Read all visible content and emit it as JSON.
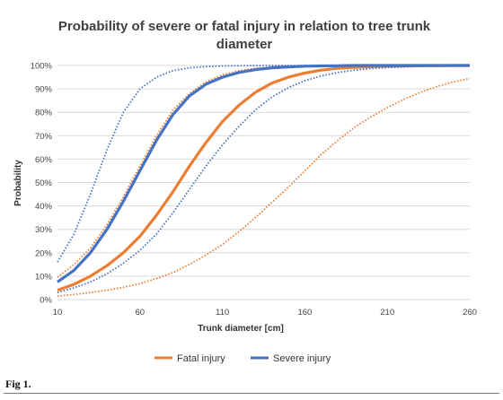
{
  "caption": "Fig 1.",
  "colors": {
    "fatal": "#ed7d31",
    "severe": "#4472c4",
    "grid": "#d9d9d9"
  },
  "chart_data": {
    "type": "line",
    "title_lines": [
      "Probability of severe or fatal injury in relation to tree trunk",
      "diameter"
    ],
    "xlabel": "Trunk diameter [cm]",
    "ylabel": "Probability",
    "xlim": [
      10,
      260
    ],
    "ylim": [
      0,
      100
    ],
    "x_ticks": [
      "10",
      "60",
      "110",
      "160",
      "210",
      "260"
    ],
    "y_ticks": [
      "0%",
      "10%",
      "20%",
      "30%",
      "40%",
      "50%",
      "60%",
      "70%",
      "80%",
      "90%",
      "100%"
    ],
    "grid": "horizontal",
    "legend_position": "bottom",
    "legend": [
      "Fatal injury",
      "Severe injury"
    ],
    "x": [
      10,
      20,
      30,
      40,
      50,
      60,
      70,
      80,
      90,
      100,
      110,
      120,
      130,
      140,
      150,
      160,
      170,
      180,
      190,
      200,
      210,
      220,
      230,
      240,
      250,
      260
    ],
    "series": [
      {
        "name": "Fatal injury",
        "group": "fatal",
        "style": "main",
        "values": [
          4,
          6.5,
          10,
          14.5,
          20,
          27,
          36,
          46,
          57,
          67,
          76,
          83,
          88.5,
          92.5,
          95,
          96.8,
          98,
          98.8,
          99.2,
          99.5,
          99.7,
          99.8,
          99.9,
          99.9,
          100,
          100
        ]
      },
      {
        "name": "Fatal injury",
        "group": "fatal",
        "style": "ci",
        "values": [
          9.5,
          15,
          22,
          32,
          44,
          57,
          70,
          81,
          88,
          93,
          96,
          97.8,
          98.8,
          99.4,
          99.7,
          99.8,
          99.9,
          100,
          100,
          100,
          100,
          100,
          100,
          100,
          100,
          100
        ]
      },
      {
        "name": "Fatal injury",
        "group": "fatal",
        "style": "ci",
        "values": [
          1.5,
          2.2,
          3,
          4,
          5.2,
          6.8,
          9,
          11.5,
          15,
          19,
          23.5,
          29,
          35,
          41.5,
          48,
          55,
          62,
          68,
          73.5,
          78,
          82,
          85.5,
          88.5,
          91,
          93,
          94.5
        ]
      },
      {
        "name": "Severe injury",
        "group": "severe",
        "style": "main",
        "values": [
          7.5,
          12.5,
          20,
          30,
          42,
          55,
          68,
          79,
          87,
          92,
          95,
          97,
          98.2,
          99,
          99.4,
          99.7,
          99.8,
          99.9,
          100,
          100,
          100,
          100,
          100,
          100,
          100,
          100
        ]
      },
      {
        "name": "Severe injury",
        "group": "severe",
        "style": "ci",
        "values": [
          16,
          28,
          45,
          64,
          80,
          90,
          95,
          97.8,
          99,
          99.5,
          99.8,
          99.9,
          100,
          100,
          100,
          100,
          100,
          100,
          100,
          100,
          100,
          100,
          100,
          100,
          100,
          100
        ]
      },
      {
        "name": "Severe injury",
        "group": "severe",
        "style": "ci",
        "values": [
          3,
          5,
          7.5,
          11,
          15.5,
          21,
          28,
          37,
          47,
          57,
          66,
          74,
          81,
          86.5,
          90.5,
          93.5,
          95.5,
          97,
          98,
          98.7,
          99.1,
          99.4,
          99.6,
          99.8,
          99.9,
          100
        ]
      }
    ]
  }
}
